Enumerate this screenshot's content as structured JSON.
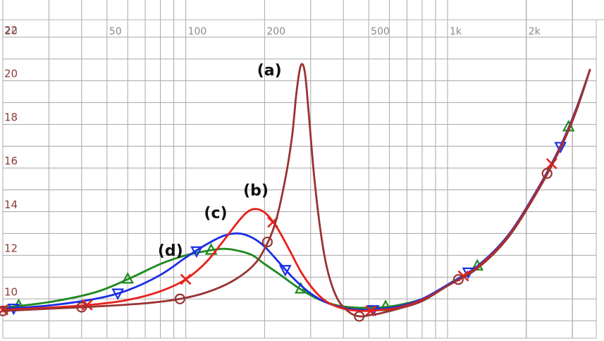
{
  "chart_data": {
    "type": "line",
    "x_scale": "log",
    "xlim": [
      20,
      3700
    ],
    "ylim": [
      8.2,
      22.8
    ],
    "grid": true,
    "x_tick_labels": [
      "20",
      "50",
      "100",
      "200",
      "500",
      "1k",
      "2k"
    ],
    "x_tick_values": [
      20,
      50,
      100,
      200,
      500,
      1000,
      2000
    ],
    "y_tick_values": [
      10,
      12,
      14,
      16,
      18,
      20,
      22
    ],
    "series": [
      {
        "label": "(a)",
        "color": "#993333",
        "marker": "circle",
        "points": [
          [
            20,
            9.45
          ],
          [
            30,
            9.55
          ],
          [
            45,
            9.65
          ],
          [
            70,
            9.8
          ],
          [
            95,
            10.0
          ],
          [
            120,
            10.3
          ],
          [
            150,
            10.8
          ],
          [
            180,
            11.5
          ],
          [
            200,
            12.3
          ],
          [
            220,
            13.5
          ],
          [
            240,
            15.5
          ],
          [
            255,
            17.5
          ],
          [
            265,
            19.5
          ],
          [
            275,
            20.7
          ],
          [
            285,
            20.4
          ],
          [
            295,
            18.5
          ],
          [
            310,
            15.5
          ],
          [
            330,
            12.8
          ],
          [
            350,
            11.2
          ],
          [
            380,
            10.0
          ],
          [
            420,
            9.4
          ],
          [
            460,
            9.2
          ],
          [
            500,
            9.25
          ],
          [
            560,
            9.35
          ],
          [
            650,
            9.55
          ],
          [
            800,
            9.9
          ],
          [
            1000,
            10.6
          ],
          [
            1300,
            11.4
          ],
          [
            1700,
            12.8
          ],
          [
            2200,
            14.9
          ],
          [
            2700,
            16.9
          ],
          [
            3100,
            18.6
          ],
          [
            3500,
            20.5
          ]
        ],
        "marker_x": [
          20,
          40,
          95,
          205,
          460,
          1100,
          2400
        ]
      },
      {
        "label": "(b)",
        "color": "#e8201a",
        "marker": "x",
        "points": [
          [
            20,
            9.5
          ],
          [
            30,
            9.6
          ],
          [
            45,
            9.75
          ],
          [
            60,
            9.95
          ],
          [
            80,
            10.35
          ],
          [
            100,
            10.9
          ],
          [
            120,
            11.7
          ],
          [
            140,
            12.7
          ],
          [
            160,
            13.6
          ],
          [
            175,
            14.05
          ],
          [
            190,
            14.1
          ],
          [
            205,
            13.85
          ],
          [
            225,
            13.2
          ],
          [
            250,
            12.2
          ],
          [
            280,
            11.1
          ],
          [
            320,
            10.2
          ],
          [
            360,
            9.75
          ],
          [
            420,
            9.5
          ],
          [
            500,
            9.45
          ],
          [
            560,
            9.5
          ],
          [
            650,
            9.6
          ],
          [
            800,
            9.95
          ],
          [
            1000,
            10.6
          ],
          [
            1300,
            11.45
          ],
          [
            1700,
            12.85
          ],
          [
            2200,
            14.95
          ],
          [
            2700,
            16.95
          ],
          [
            3100,
            18.65
          ],
          [
            3500,
            20.5
          ]
        ],
        "marker_x": [
          20,
          42,
          100,
          215,
          510,
          1150,
          2500
        ]
      },
      {
        "label": "(c)",
        "color": "#1a2ee6",
        "marker": "triangle-down",
        "points": [
          [
            20,
            9.55
          ],
          [
            30,
            9.7
          ],
          [
            45,
            10.0
          ],
          [
            60,
            10.4
          ],
          [
            80,
            11.1
          ],
          [
            100,
            11.9
          ],
          [
            120,
            12.5
          ],
          [
            140,
            12.9
          ],
          [
            160,
            13.0
          ],
          [
            180,
            12.8
          ],
          [
            200,
            12.4
          ],
          [
            230,
            11.6
          ],
          [
            260,
            10.9
          ],
          [
            300,
            10.25
          ],
          [
            350,
            9.8
          ],
          [
            420,
            9.55
          ],
          [
            500,
            9.5
          ],
          [
            560,
            9.55
          ],
          [
            650,
            9.65
          ],
          [
            800,
            10.0
          ],
          [
            1000,
            10.65
          ],
          [
            1300,
            11.5
          ],
          [
            1700,
            12.9
          ],
          [
            2200,
            15.0
          ],
          [
            2700,
            17.0
          ],
          [
            3100,
            18.7
          ],
          [
            3500,
            20.5
          ]
        ],
        "marker_x": [
          22,
          55,
          110,
          240,
          520,
          1200,
          2700
        ]
      },
      {
        "label": "(d)",
        "color": "#1e8a1e",
        "marker": "triangle-up",
        "points": [
          [
            20,
            9.6
          ],
          [
            30,
            9.85
          ],
          [
            45,
            10.3
          ],
          [
            60,
            10.9
          ],
          [
            80,
            11.6
          ],
          [
            100,
            12.0
          ],
          [
            120,
            12.2
          ],
          [
            140,
            12.3
          ],
          [
            160,
            12.2
          ],
          [
            180,
            12.0
          ],
          [
            200,
            11.6
          ],
          [
            230,
            11.1
          ],
          [
            270,
            10.5
          ],
          [
            320,
            10.0
          ],
          [
            380,
            9.7
          ],
          [
            450,
            9.6
          ],
          [
            520,
            9.6
          ],
          [
            600,
            9.65
          ],
          [
            700,
            9.8
          ],
          [
            850,
            10.1
          ],
          [
            1000,
            10.65
          ],
          [
            1300,
            11.5
          ],
          [
            1700,
            12.9
          ],
          [
            2200,
            15.0
          ],
          [
            2700,
            17.0
          ],
          [
            3100,
            18.7
          ],
          [
            3500,
            20.5
          ]
        ],
        "marker_x": [
          23,
          60,
          125,
          275,
          580,
          1300,
          2900
        ]
      }
    ]
  }
}
